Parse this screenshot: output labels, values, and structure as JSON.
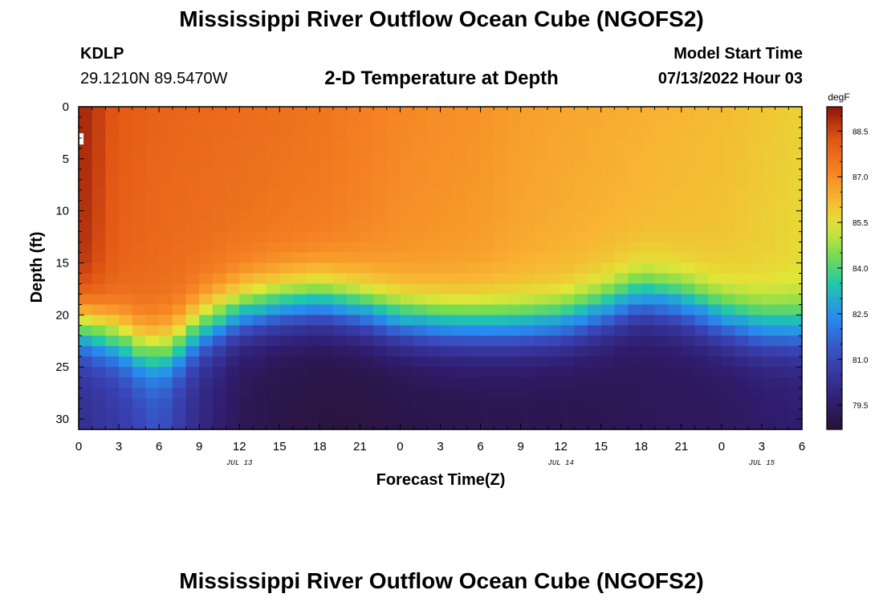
{
  "header": {
    "title": "Mississippi River Outflow Ocean Cube (NGOFS2)",
    "station_id": "KDLP",
    "coords": "29.1210N  89.5470W",
    "subtitle": "2-D Temperature at Depth",
    "model_start_label": "Model Start Time",
    "model_start_value": "07/13/2022 Hour 03"
  },
  "footer": {
    "title": "Mississippi River Outflow Ocean Cube (NGOFS2)"
  },
  "chart_data": {
    "type": "heatmap",
    "title": "2-D Temperature at Depth",
    "xlabel": "Forecast Time(Z)",
    "ylabel": "Depth (ft)",
    "x_range_hours": [
      0,
      54
    ],
    "y_range_ft": [
      0,
      31
    ],
    "y_inverted": true,
    "x_ticks": [
      {
        "hour": 0,
        "label": "0"
      },
      {
        "hour": 3,
        "label": "3"
      },
      {
        "hour": 6,
        "label": "6"
      },
      {
        "hour": 9,
        "label": "9"
      },
      {
        "hour": 12,
        "label": "12"
      },
      {
        "hour": 15,
        "label": "15"
      },
      {
        "hour": 18,
        "label": "18"
      },
      {
        "hour": 21,
        "label": "21"
      },
      {
        "hour": 24,
        "label": "0"
      },
      {
        "hour": 27,
        "label": "3"
      },
      {
        "hour": 30,
        "label": "6"
      },
      {
        "hour": 33,
        "label": "9"
      },
      {
        "hour": 36,
        "label": "12"
      },
      {
        "hour": 39,
        "label": "15"
      },
      {
        "hour": 42,
        "label": "18"
      },
      {
        "hour": 45,
        "label": "21"
      },
      {
        "hour": 48,
        "label": "0"
      },
      {
        "hour": 51,
        "label": "3"
      },
      {
        "hour": 54,
        "label": "6"
      }
    ],
    "date_labels": [
      {
        "hour": 12,
        "label": "JUL 13"
      },
      {
        "hour": 36,
        "label": "JUL 14"
      },
      {
        "hour": 51,
        "label": "JUL 15"
      }
    ],
    "y_ticks": [
      0,
      5,
      10,
      15,
      20,
      25,
      30
    ],
    "colorbar": {
      "units": "degF",
      "min": 78.7,
      "max": 89.3,
      "ticks": [
        88.5,
        87.0,
        85.5,
        84.0,
        82.5,
        81.0,
        79.5
      ]
    },
    "thermocline_depth_ft": {
      "hours": [
        0,
        3,
        5,
        7,
        9,
        12,
        15,
        18,
        21,
        24,
        27,
        30,
        33,
        36,
        39,
        42,
        45,
        48,
        51,
        54
      ],
      "values": [
        21.0,
        22.3,
        23.6,
        23.3,
        21.3,
        19.7,
        19.0,
        18.7,
        19.4,
        20.4,
        20.9,
        21.0,
        21.0,
        20.7,
        19.6,
        18.2,
        18.9,
        20.3,
        21.3,
        21.4
      ]
    },
    "surface_temp_degF": {
      "hours": [
        0,
        1.5,
        3,
        6,
        9,
        12,
        15,
        18,
        21,
        24,
        27,
        30,
        33,
        36,
        39,
        42,
        45,
        48,
        51,
        54
      ],
      "values": [
        89.1,
        88.6,
        88.1,
        87.9,
        87.8,
        87.7,
        87.6,
        87.5,
        87.3,
        87.1,
        87.0,
        86.9,
        86.7,
        86.6,
        86.5,
        86.4,
        86.3,
        86.2,
        86.0,
        85.8
      ]
    },
    "bottom_temp_degF": {
      "hours": [
        0,
        3,
        6,
        9,
        12,
        15,
        18,
        21,
        24,
        30,
        36,
        42,
        48,
        54
      ],
      "values": [
        80.2,
        80.6,
        81.3,
        80.0,
        79.2,
        79.0,
        78.9,
        78.9,
        79.0,
        79.1,
        79.1,
        79.2,
        79.3,
        79.6
      ]
    }
  }
}
